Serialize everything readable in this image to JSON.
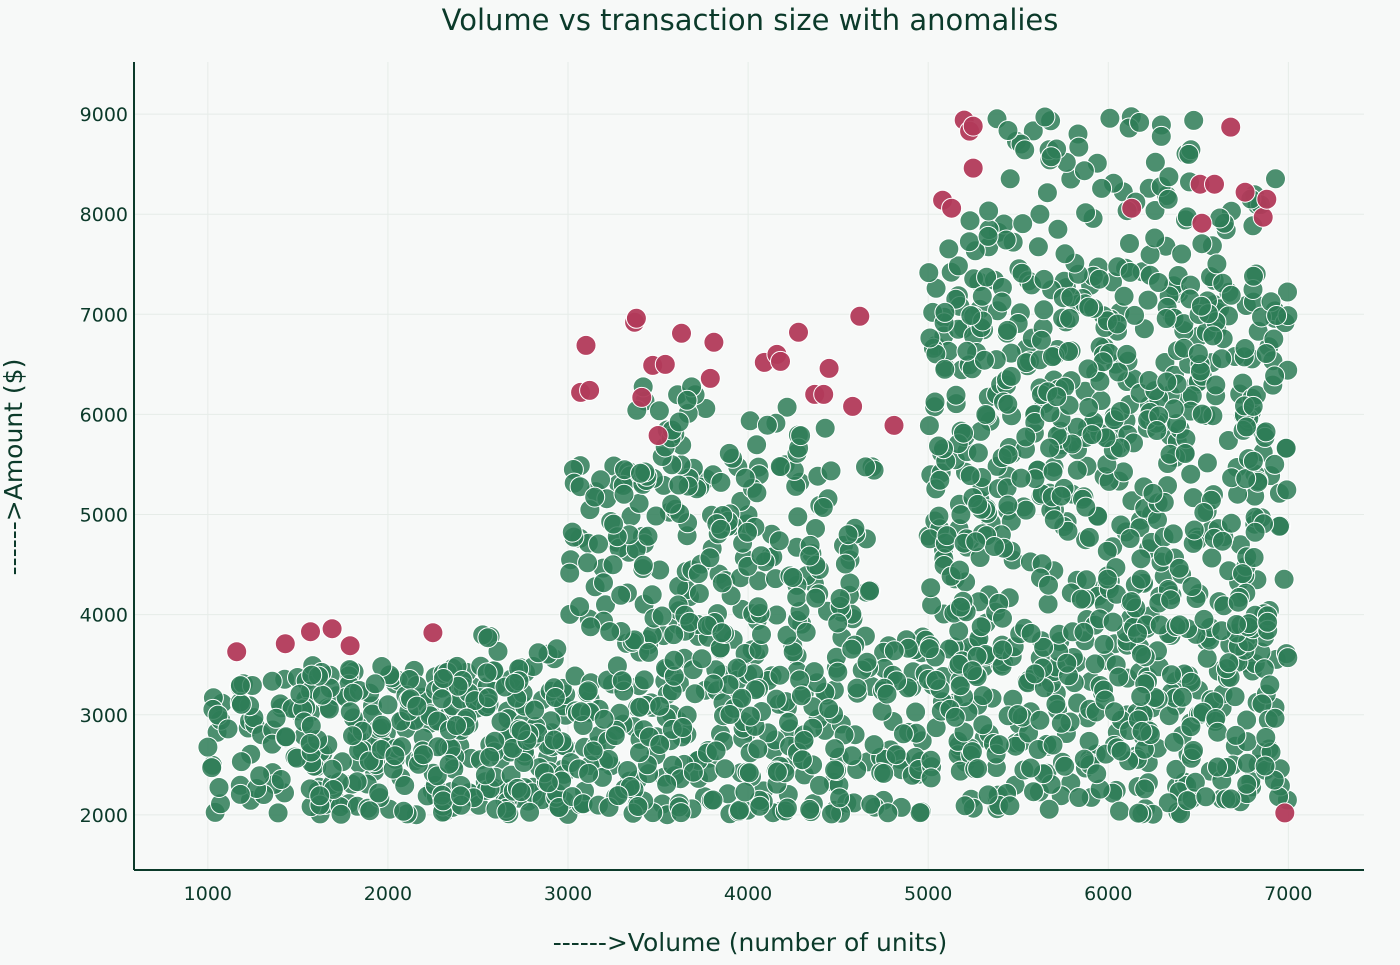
{
  "chart_data": {
    "type": "scatter",
    "title": "Volume vs transaction size with anomalies",
    "xlabel": "------>Volume (number of units)",
    "ylabel": "------>Amount ($)",
    "xlim": [
      590,
      7420
    ],
    "ylim": [
      1450,
      9520
    ],
    "xticks": [
      1000,
      2000,
      3000,
      4000,
      5000,
      6000,
      7000
    ],
    "yticks": [
      2000,
      3000,
      4000,
      5000,
      6000,
      7000,
      8000,
      9000
    ],
    "grid": true,
    "colors": {
      "normal": "#2e7d57",
      "anomaly": "#b23a5a",
      "axis": "#0b3a2a",
      "background": "#f7f9f8"
    },
    "series": [
      {
        "role": "normal",
        "sampled": true,
        "regions": [
          {
            "x_range": [
              1000,
              3000
            ],
            "y_range": [
              2000,
              3500
            ],
            "count": 330
          },
          {
            "x_range": [
              2300,
              3000
            ],
            "y_range": [
              2500,
              3800
            ],
            "count": 40
          },
          {
            "x_range": [
              3000,
              5000
            ],
            "y_range": [
              2000,
              3800
            ],
            "count": 320
          },
          {
            "x_range": [
              3000,
              4700
            ],
            "y_range": [
              3800,
              5500
            ],
            "count": 210
          },
          {
            "x_range": [
              3300,
              4500
            ],
            "y_range": [
              5500,
              6300
            ],
            "count": 30
          },
          {
            "x_range": [
              5000,
              7000
            ],
            "y_range": [
              2000,
              3800
            ],
            "count": 320
          },
          {
            "x_range": [
              5000,
              7000
            ],
            "y_range": [
              3800,
              5500
            ],
            "count": 260
          },
          {
            "x_range": [
              5000,
              7000
            ],
            "y_range": [
              5500,
              7500
            ],
            "count": 330
          },
          {
            "x_range": [
              5100,
              6950
            ],
            "y_range": [
              7500,
              8400
            ],
            "count": 55
          },
          {
            "x_range": [
              5300,
              6500
            ],
            "y_range": [
              8400,
              8980
            ],
            "count": 28
          }
        ]
      },
      {
        "role": "anomaly",
        "points": [
          [
            1160,
            3630
          ],
          [
            1430,
            3710
          ],
          [
            1570,
            3830
          ],
          [
            1690,
            3860
          ],
          [
            1790,
            3690
          ],
          [
            2250,
            3820
          ],
          [
            3070,
            6220
          ],
          [
            3100,
            6690
          ],
          [
            3120,
            6240
          ],
          [
            3370,
            6920
          ],
          [
            3380,
            6960
          ],
          [
            3410,
            6170
          ],
          [
            3470,
            6490
          ],
          [
            3500,
            5790
          ],
          [
            3540,
            6500
          ],
          [
            3630,
            6810
          ],
          [
            3790,
            6360
          ],
          [
            3810,
            6720
          ],
          [
            4090,
            6520
          ],
          [
            4160,
            6600
          ],
          [
            4180,
            6530
          ],
          [
            4280,
            6820
          ],
          [
            4370,
            6200
          ],
          [
            4420,
            6200
          ],
          [
            4450,
            6460
          ],
          [
            4580,
            6080
          ],
          [
            4620,
            6980
          ],
          [
            4810,
            5890
          ],
          [
            5080,
            8140
          ],
          [
            5130,
            8060
          ],
          [
            5200,
            8940
          ],
          [
            5230,
            8830
          ],
          [
            5250,
            8880
          ],
          [
            5250,
            8460
          ],
          [
            6130,
            8060
          ],
          [
            6510,
            8300
          ],
          [
            6520,
            7910
          ],
          [
            6590,
            8300
          ],
          [
            6680,
            8870
          ],
          [
            6760,
            8220
          ],
          [
            6860,
            7970
          ],
          [
            6880,
            8150
          ],
          [
            6980,
            2020
          ]
        ]
      }
    ]
  }
}
